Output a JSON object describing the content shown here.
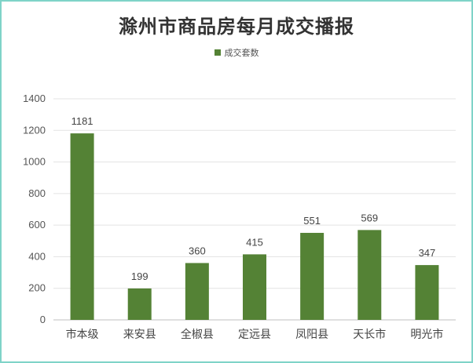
{
  "chart_data": {
    "type": "bar",
    "title": "滁州市商品房每月成交播报",
    "legend": {
      "label": "成交套数",
      "position": "top"
    },
    "categories": [
      "市本级",
      "来安县",
      "全椒县",
      "定远县",
      "凤阳县",
      "天长市",
      "明光市"
    ],
    "series": [
      {
        "name": "成交套数",
        "values": [
          1181,
          199,
          360,
          415,
          551,
          569,
          347
        ],
        "color": "#548235"
      }
    ],
    "yticks": [
      "0",
      "200",
      "400",
      "600",
      "800",
      "1000",
      "1200",
      "1400"
    ],
    "ylim": [
      0,
      1400
    ],
    "grid": true,
    "xlabel": "",
    "ylabel": ""
  }
}
